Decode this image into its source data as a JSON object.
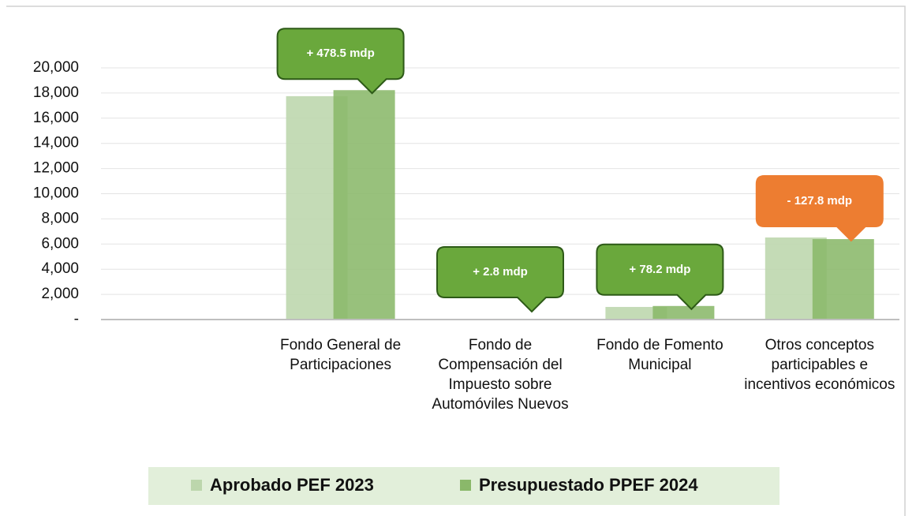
{
  "chart_data": {
    "type": "bar",
    "categories": [
      null,
      "Fondo General de Participaciones",
      "Fondo de Compensación del Impuesto sobre Automóviles Nuevos",
      "Fondo de Fomento Municipal",
      "Otros conceptos participables e incentivos económicos"
    ],
    "series": [
      {
        "name": "Aprobado PEF 2023",
        "color": "#bcd6ac",
        "values": [
          null,
          17750,
          60,
          1000,
          6520
        ]
      },
      {
        "name": "Presupuestado PPEF 2024",
        "color": "#8ab86a",
        "values": [
          null,
          18228.5,
          62.8,
          1078.2,
          6392.2
        ]
      }
    ],
    "ylim": [
      0,
      20000
    ],
    "yticks": [
      {
        "value": 0,
        "label": "-"
      },
      {
        "value": 2000,
        "label": "2,000"
      },
      {
        "value": 4000,
        "label": "4,000"
      },
      {
        "value": 6000,
        "label": "6,000"
      },
      {
        "value": 8000,
        "label": "8,000"
      },
      {
        "value": 10000,
        "label": "10,000"
      },
      {
        "value": 12000,
        "label": "12,000"
      },
      {
        "value": 14000,
        "label": "14,000"
      },
      {
        "value": 16000,
        "label": "16,000"
      },
      {
        "value": 18000,
        "label": "18,000"
      },
      {
        "value": 20000,
        "label": "20,000"
      }
    ],
    "grid": true,
    "legend": "bottom",
    "annotations": [
      {
        "text": "+ 478.5 mdp",
        "color": "#6aa83c"
      },
      {
        "text": "+ 2.8 mdp",
        "color": "#6aa83c"
      },
      {
        "text": "+ 78.2 mdp",
        "color": "#6aa83c"
      },
      {
        "text": "- 127.8 mdp",
        "color": "#ed7d31"
      }
    ]
  }
}
